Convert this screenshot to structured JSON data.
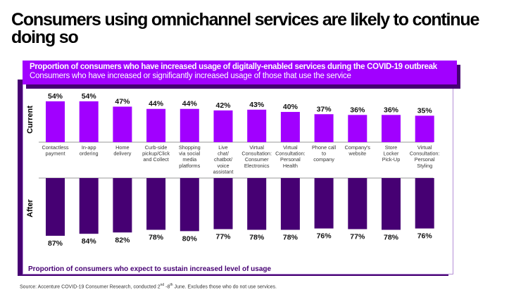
{
  "title": "Consumers using omnichannel services are likely to continue doing so",
  "banner": {
    "heading": "Proportion of consumers who have increased usage of digitally-enabled services during the COVID-19 outbreak",
    "subheading": "Consumers who have increased or significantly increased usage of those that use the service"
  },
  "footer_note": "Proportion of consumers who expect to sustain increased level of usage",
  "source": {
    "prefix": "Source: Accenture COVID-19 Consumer Research, conducted 2",
    "sup1": "nd",
    "middle": " -8",
    "sup2": "th",
    "suffix": " June. Excludes those who do not use services."
  },
  "colors": {
    "current_bar": "#a100ff",
    "after_bar": "#460073",
    "frame_border": "#b58fd6",
    "axis_line": "#999999"
  },
  "chart_data": {
    "type": "bar",
    "title": "Proportion of consumers who have increased usage of digitally-enabled services during the COVID-19 outbreak",
    "categories": [
      [
        "Contactless",
        "payment"
      ],
      [
        "In-app",
        "ordering"
      ],
      [
        "Home",
        "delivery"
      ],
      [
        "Curb-side",
        "pickup/Click",
        "and Collect"
      ],
      [
        "Shopping",
        "via social",
        "media",
        "platforms"
      ],
      [
        "Live",
        "chat/",
        "chatbot/",
        "voice",
        "assistant"
      ],
      [
        "Virtual",
        "Consultation:",
        "Consumer",
        "Electronics"
      ],
      [
        "Virtual",
        "Consultation:",
        "Personal",
        "Health"
      ],
      [
        "Phone call",
        "to",
        "company"
      ],
      [
        "Company's",
        "website"
      ],
      [
        "Store",
        "Locker",
        "Pick-Up"
      ],
      [
        "Virtual",
        "Consultation:",
        "Personal",
        "Styling"
      ]
    ],
    "series": [
      {
        "name": "Current",
        "values": [
          54,
          54,
          47,
          44,
          44,
          42,
          43,
          40,
          37,
          36,
          36,
          35
        ],
        "labels": [
          "54%",
          "54%",
          "47%",
          "44%",
          "44%",
          "42%",
          "43%",
          "40%",
          "37%",
          "36%",
          "36%",
          "35%"
        ]
      },
      {
        "name": "After",
        "values": [
          87,
          84,
          82,
          78,
          80,
          77,
          78,
          78,
          76,
          77,
          78,
          76
        ],
        "labels": [
          "87%",
          "84%",
          "82%",
          "78%",
          "80%",
          "77%",
          "78%",
          "78%",
          "76%",
          "77%",
          "78%",
          "76%"
        ]
      }
    ],
    "ylim": [
      0,
      100
    ],
    "grid": false,
    "legend": "none"
  }
}
